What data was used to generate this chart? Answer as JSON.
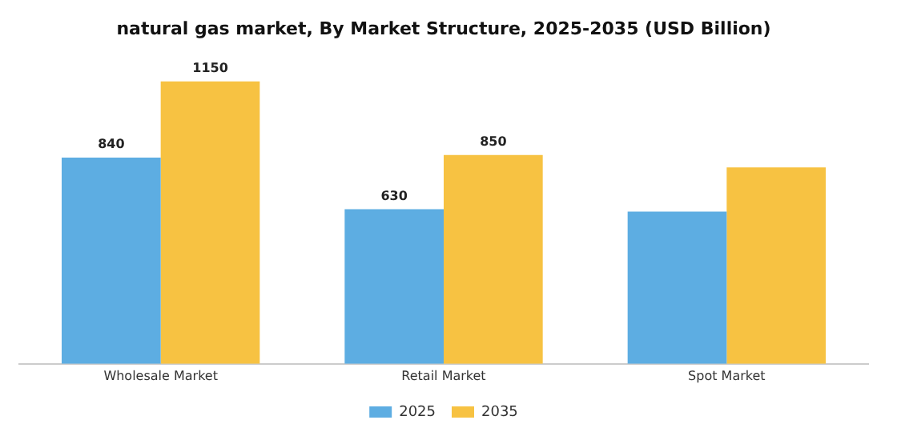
{
  "chart_data": {
    "type": "bar",
    "title": "natural gas market, By Market Structure, 2025-2035 (USD Billion)",
    "categories": [
      "Wholesale Market",
      "Retail Market",
      "Spot Market"
    ],
    "series": [
      {
        "name": "2025",
        "color": "#5dade2",
        "values": [
          840,
          630,
          620
        ],
        "value_labels": [
          "840",
          "630",
          null
        ]
      },
      {
        "name": "2035",
        "color": "#f7c242",
        "values": [
          1150,
          850,
          800
        ],
        "value_labels": [
          "1150",
          "850",
          null
        ]
      }
    ],
    "legend": "bottom",
    "grid": false
  }
}
